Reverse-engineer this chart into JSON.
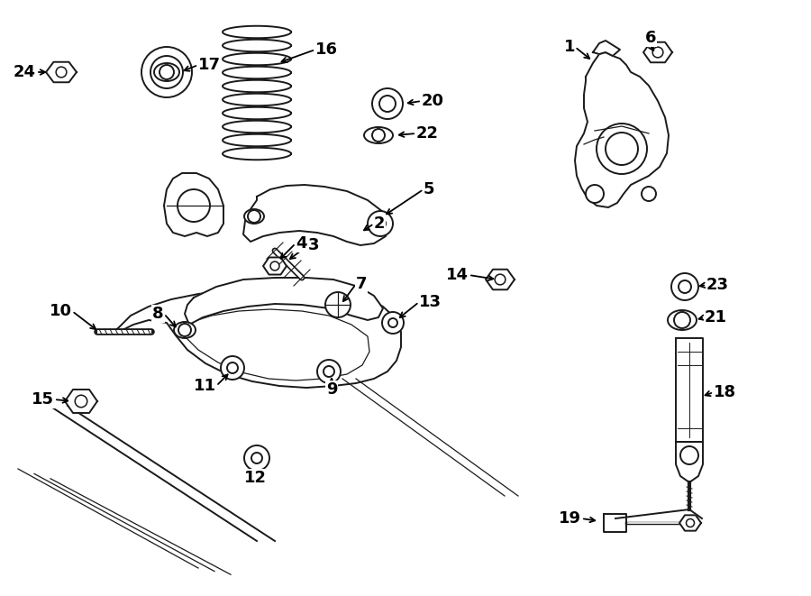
{
  "bg_color": "#ffffff",
  "line_color": "#1a1a1a",
  "text_color": "#000000",
  "fig_width": 9.0,
  "fig_height": 6.61,
  "dpi": 100,
  "label_fontsize": 13,
  "label_fontweight": "bold"
}
